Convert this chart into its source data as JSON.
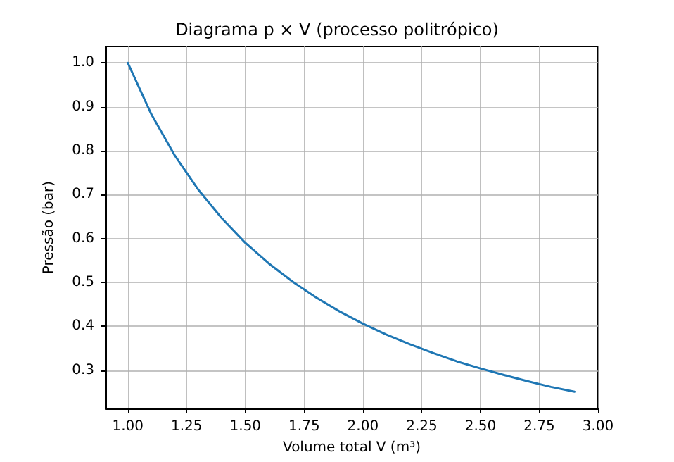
{
  "chart_data": {
    "type": "line",
    "title": "Diagrama p × V (processo politrópico)",
    "xlabel": "Volume total V (m³)",
    "ylabel": "Pressão (bar)",
    "x": [
      1.0,
      1.1,
      1.2,
      1.3,
      1.4,
      1.5,
      1.6,
      1.7,
      1.8,
      1.9,
      2.0,
      2.1,
      2.2,
      2.3,
      2.4,
      2.5,
      2.6,
      2.7,
      2.8,
      2.9
    ],
    "series": [
      {
        "color": "#1f77b4",
        "values": [
          1.0,
          0.883,
          0.789,
          0.711,
          0.646,
          0.59,
          0.543,
          0.502,
          0.466,
          0.434,
          0.406,
          0.381,
          0.359,
          0.339,
          0.32,
          0.304,
          0.289,
          0.275,
          0.262,
          0.251
        ]
      }
    ],
    "xlim": [
      0.905,
      3.0
    ],
    "ylim": [
      0.2125,
      1.0375
    ],
    "xticks": [
      {
        "value": 1.0,
        "label": "1.00"
      },
      {
        "value": 1.25,
        "label": "1.25"
      },
      {
        "value": 1.5,
        "label": "1.50"
      },
      {
        "value": 1.75,
        "label": "1.75"
      },
      {
        "value": 2.0,
        "label": "2.00"
      },
      {
        "value": 2.25,
        "label": "2.25"
      },
      {
        "value": 2.5,
        "label": "2.50"
      },
      {
        "value": 2.75,
        "label": "2.75"
      },
      {
        "value": 3.0,
        "label": "3.00"
      }
    ],
    "yticks": [
      {
        "value": 0.3,
        "label": "0.3"
      },
      {
        "value": 0.4,
        "label": "0.4"
      },
      {
        "value": 0.5,
        "label": "0.5"
      },
      {
        "value": 0.6,
        "label": "0.6"
      },
      {
        "value": 0.7,
        "label": "0.7"
      },
      {
        "value": 0.8,
        "label": "0.8"
      },
      {
        "value": 0.9,
        "label": "0.9"
      },
      {
        "value": 1.0,
        "label": "1.0"
      }
    ],
    "grid": true,
    "marker": "none",
    "line_style": "solid"
  }
}
